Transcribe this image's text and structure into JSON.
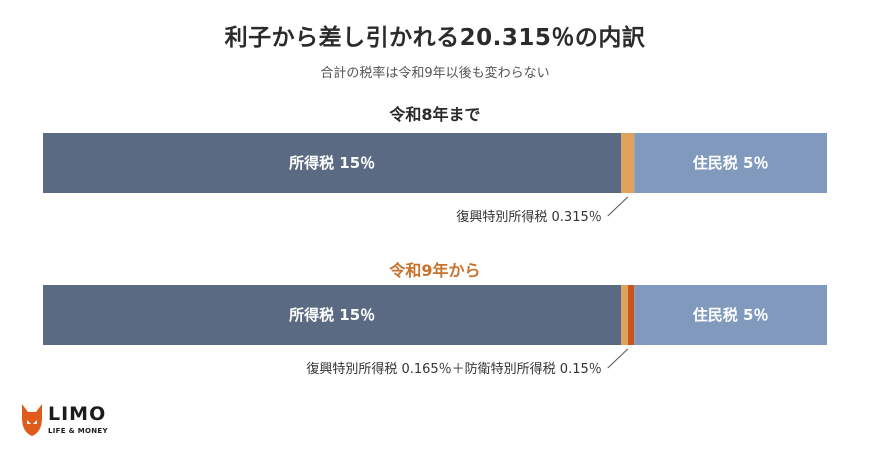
{
  "title": "利子から差し引かれる20.315％の内訳",
  "subtitle": "合計の税率は令和9年以後も変わらない",
  "logo": {
    "name": "LIMO",
    "tagline": "LIFE & MONEY"
  },
  "chart_data": [
    {
      "type": "bar",
      "orientation": "horizontal-stacked",
      "title": "令和8年まで",
      "segments": [
        {
          "name": "所得税 15%",
          "value": 15,
          "color": "#5a6a82",
          "label_inside": true
        },
        {
          "name": "復興特別所得税 0.315%",
          "value": 0.315,
          "color": "#e0a35c",
          "label_inside": false
        },
        {
          "name": "住民税 5%",
          "value": 5,
          "color": "#8099bd",
          "label_inside": true
        }
      ],
      "note": "復興特別所得税 0.315％"
    },
    {
      "type": "bar",
      "orientation": "horizontal-stacked",
      "title": "令和9年から",
      "segments": [
        {
          "name": "所得税 15%",
          "value": 15,
          "color": "#5a6a82",
          "label_inside": true
        },
        {
          "name": "復興特別所得税 0.165%",
          "value": 0.165,
          "color": "#e0a35c",
          "label_inside": false
        },
        {
          "name": "防衛特別所得税 0.15%",
          "value": 0.15,
          "color": "#c8531c",
          "label_inside": false
        },
        {
          "name": "住民税 5%",
          "value": 5,
          "color": "#8099bd",
          "label_inside": true
        }
      ],
      "note": "復興特別所得税 0.165％＋防衛特別所得税 0.15％"
    }
  ]
}
